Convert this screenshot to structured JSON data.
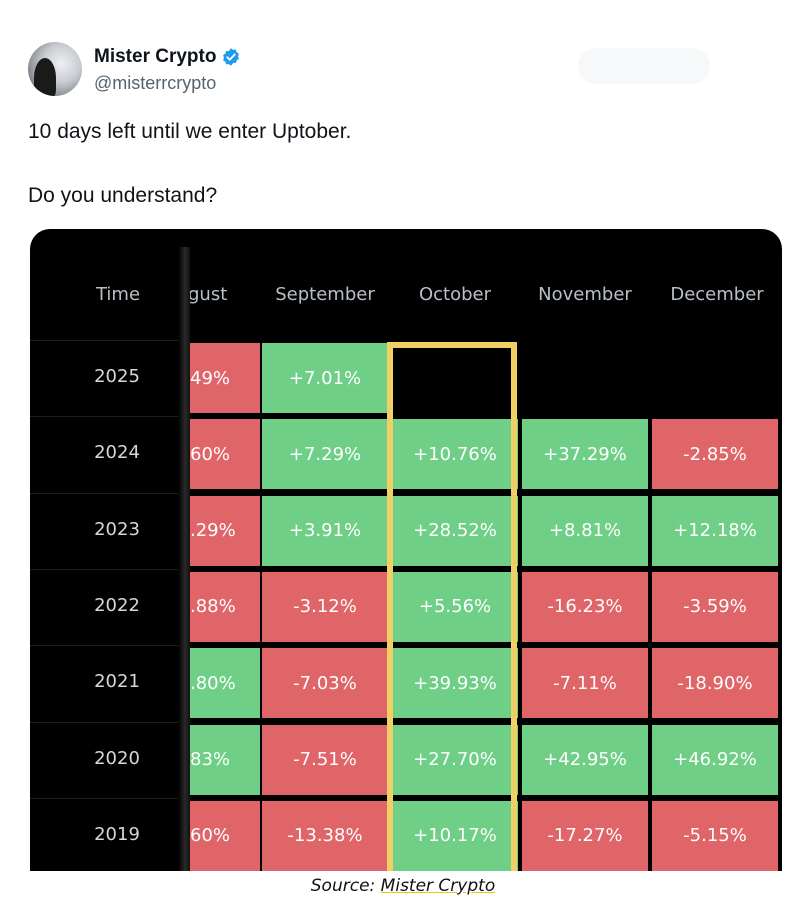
{
  "author": {
    "name": "Mister Crypto",
    "handle": "@misterrcrypto",
    "verified_color": "#1d9bf0"
  },
  "tweet": {
    "line1": "10 days left until we enter Uptober.",
    "line2": "Do you understand?"
  },
  "table": {
    "time_header": "Time",
    "columns": [
      "gust",
      "September",
      "October",
      "November",
      "December"
    ],
    "highlight_column": "October",
    "colors": {
      "positive": "#6fcf87",
      "negative": "#e06569",
      "highlight": "#f0d064"
    },
    "rows": [
      {
        "year": "2025",
        "cells": [
          {
            "text": "49%",
            "sign": "neg"
          },
          {
            "text": "+7.01%",
            "sign": "pos"
          },
          {
            "text": "",
            "sign": "empty"
          },
          {
            "text": "",
            "sign": "empty"
          },
          {
            "text": "",
            "sign": "empty"
          }
        ]
      },
      {
        "year": "2024",
        "cells": [
          {
            "text": "60%",
            "sign": "neg"
          },
          {
            "text": "+7.29%",
            "sign": "pos"
          },
          {
            "text": "+10.76%",
            "sign": "pos"
          },
          {
            "text": "+37.29%",
            "sign": "pos"
          },
          {
            "text": "-2.85%",
            "sign": "neg"
          }
        ]
      },
      {
        "year": "2023",
        "cells": [
          {
            "text": ".29%",
            "sign": "neg"
          },
          {
            "text": "+3.91%",
            "sign": "pos"
          },
          {
            "text": "+28.52%",
            "sign": "pos"
          },
          {
            "text": "+8.81%",
            "sign": "pos"
          },
          {
            "text": "+12.18%",
            "sign": "pos"
          }
        ]
      },
      {
        "year": "2022",
        "cells": [
          {
            "text": ".88%",
            "sign": "neg"
          },
          {
            "text": "-3.12%",
            "sign": "neg"
          },
          {
            "text": "+5.56%",
            "sign": "pos"
          },
          {
            "text": "-16.23%",
            "sign": "neg"
          },
          {
            "text": "-3.59%",
            "sign": "neg"
          }
        ]
      },
      {
        "year": "2021",
        "cells": [
          {
            "text": ".80%",
            "sign": "pos"
          },
          {
            "text": "-7.03%",
            "sign": "neg"
          },
          {
            "text": "+39.93%",
            "sign": "pos"
          },
          {
            "text": "-7.11%",
            "sign": "neg"
          },
          {
            "text": "-18.90%",
            "sign": "neg"
          }
        ]
      },
      {
        "year": "2020",
        "cells": [
          {
            "text": "83%",
            "sign": "pos"
          },
          {
            "text": "-7.51%",
            "sign": "neg"
          },
          {
            "text": "+27.70%",
            "sign": "pos"
          },
          {
            "text": "+42.95%",
            "sign": "pos"
          },
          {
            "text": "+46.92%",
            "sign": "pos"
          }
        ]
      },
      {
        "year": "2019",
        "cells": [
          {
            "text": "60%",
            "sign": "neg"
          },
          {
            "text": "-13.38%",
            "sign": "neg"
          },
          {
            "text": "+10.17%",
            "sign": "pos"
          },
          {
            "text": "-17.27%",
            "sign": "neg"
          },
          {
            "text": "-5.15%",
            "sign": "neg"
          }
        ]
      }
    ]
  },
  "source": {
    "prefix": "Source: ",
    "link": "Mister Crypto"
  }
}
